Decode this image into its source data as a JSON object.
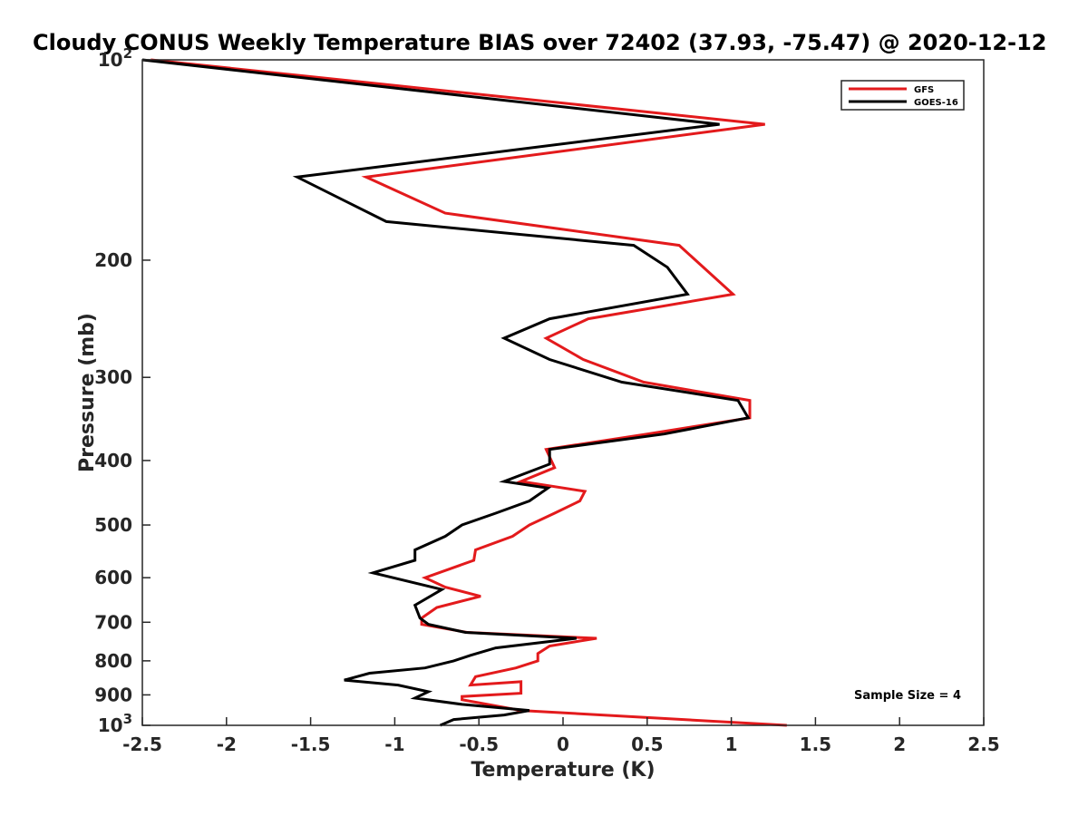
{
  "chart_data": {
    "type": "line",
    "title": "Cloudy CONUS Weekly Temperature BIAS over 72402 (37.93, -75.47) @ 2020-12-12",
    "xlabel": "Temperature (K)",
    "ylabel": "Pressure (mb)",
    "xlim": [
      -2.5,
      2.5
    ],
    "ylim": [
      100,
      1000
    ],
    "y_scale": "log",
    "y_reversed": true,
    "x_ticks": [
      -2.5,
      -2,
      -1.5,
      -1,
      -0.5,
      0,
      0.5,
      1,
      1.5,
      2,
      2.5
    ],
    "x_tick_labels": [
      "-2.5",
      "-2",
      "-1.5",
      "-1",
      "-0.5",
      "0",
      "0.5",
      "1",
      "1.5",
      "2",
      "2.5"
    ],
    "y_ticks": [
      100,
      200,
      300,
      400,
      500,
      600,
      700,
      800,
      900,
      1000
    ],
    "y_tick_labels": [
      {
        "base": "10",
        "exp": "2"
      },
      {
        "base": "200",
        "exp": ""
      },
      {
        "base": "300",
        "exp": ""
      },
      {
        "base": "400",
        "exp": ""
      },
      {
        "base": "500",
        "exp": ""
      },
      {
        "base": "600",
        "exp": ""
      },
      {
        "base": "700",
        "exp": ""
      },
      {
        "base": "800",
        "exp": ""
      },
      {
        "base": "900",
        "exp": ""
      },
      {
        "base": "10",
        "exp": "3"
      }
    ],
    "grid": false,
    "legend_position": "top-right",
    "annotation": "Sample Size = 4",
    "series": [
      {
        "name": "GFS",
        "color": "#e31a1c",
        "points": [
          [
            -2.45,
            100
          ],
          [
            1.2,
            125
          ],
          [
            -1.17,
            150
          ],
          [
            -0.7,
            170
          ],
          [
            0.69,
            190
          ],
          [
            1.01,
            225
          ],
          [
            0.15,
            245
          ],
          [
            -0.1,
            262
          ],
          [
            0.12,
            282
          ],
          [
            0.48,
            305
          ],
          [
            1.11,
            325
          ],
          [
            1.11,
            345
          ],
          [
            0.5,
            365
          ],
          [
            -0.1,
            385
          ],
          [
            -0.05,
            410
          ],
          [
            -0.25,
            430
          ],
          [
            0.13,
            445
          ],
          [
            0.1,
            460
          ],
          [
            -0.05,
            480
          ],
          [
            -0.2,
            500
          ],
          [
            -0.3,
            520
          ],
          [
            -0.52,
            545
          ],
          [
            -0.53,
            565
          ],
          [
            -0.82,
            600
          ],
          [
            -0.7,
            620
          ],
          [
            -0.49,
            640
          ],
          [
            -0.75,
            665
          ],
          [
            -0.84,
            690
          ],
          [
            -0.84,
            705
          ],
          [
            -0.57,
            725
          ],
          [
            0.2,
            740
          ],
          [
            -0.08,
            760
          ],
          [
            -0.15,
            780
          ],
          [
            -0.15,
            800
          ],
          [
            -0.28,
            820
          ],
          [
            -0.52,
            845
          ],
          [
            -0.55,
            870
          ],
          [
            -0.25,
            860
          ],
          [
            -0.25,
            895
          ],
          [
            -0.6,
            905
          ],
          [
            -0.6,
            915
          ],
          [
            -0.25,
            950
          ],
          [
            1.33,
            1000
          ]
        ]
      },
      {
        "name": "GOES-16",
        "color": "#000000",
        "points": [
          [
            -2.5,
            100
          ],
          [
            0.93,
            125
          ],
          [
            -1.58,
            150
          ],
          [
            -1.05,
            175
          ],
          [
            0.42,
            190
          ],
          [
            0.62,
            205
          ],
          [
            0.74,
            225
          ],
          [
            -0.08,
            245
          ],
          [
            -0.35,
            262
          ],
          [
            -0.08,
            282
          ],
          [
            0.35,
            305
          ],
          [
            1.04,
            325
          ],
          [
            1.1,
            345
          ],
          [
            0.6,
            365
          ],
          [
            -0.08,
            385
          ],
          [
            -0.08,
            405
          ],
          [
            -0.35,
            430
          ],
          [
            -0.09,
            440
          ],
          [
            -0.2,
            460
          ],
          [
            -0.4,
            480
          ],
          [
            -0.6,
            500
          ],
          [
            -0.7,
            520
          ],
          [
            -0.88,
            545
          ],
          [
            -0.88,
            565
          ],
          [
            -1.13,
            590
          ],
          [
            -0.72,
            625
          ],
          [
            -0.88,
            660
          ],
          [
            -0.85,
            690
          ],
          [
            -0.8,
            705
          ],
          [
            -0.58,
            725
          ],
          [
            0.08,
            740
          ],
          [
            -0.4,
            765
          ],
          [
            -0.55,
            785
          ],
          [
            -0.65,
            800
          ],
          [
            -0.82,
            820
          ],
          [
            -1.15,
            835
          ],
          [
            -1.3,
            855
          ],
          [
            -0.98,
            870
          ],
          [
            -0.8,
            890
          ],
          [
            -0.88,
            910
          ],
          [
            -0.6,
            930
          ],
          [
            -0.2,
            950
          ],
          [
            -0.35,
            965
          ],
          [
            -0.65,
            980
          ],
          [
            -0.73,
            1000
          ]
        ]
      }
    ]
  }
}
